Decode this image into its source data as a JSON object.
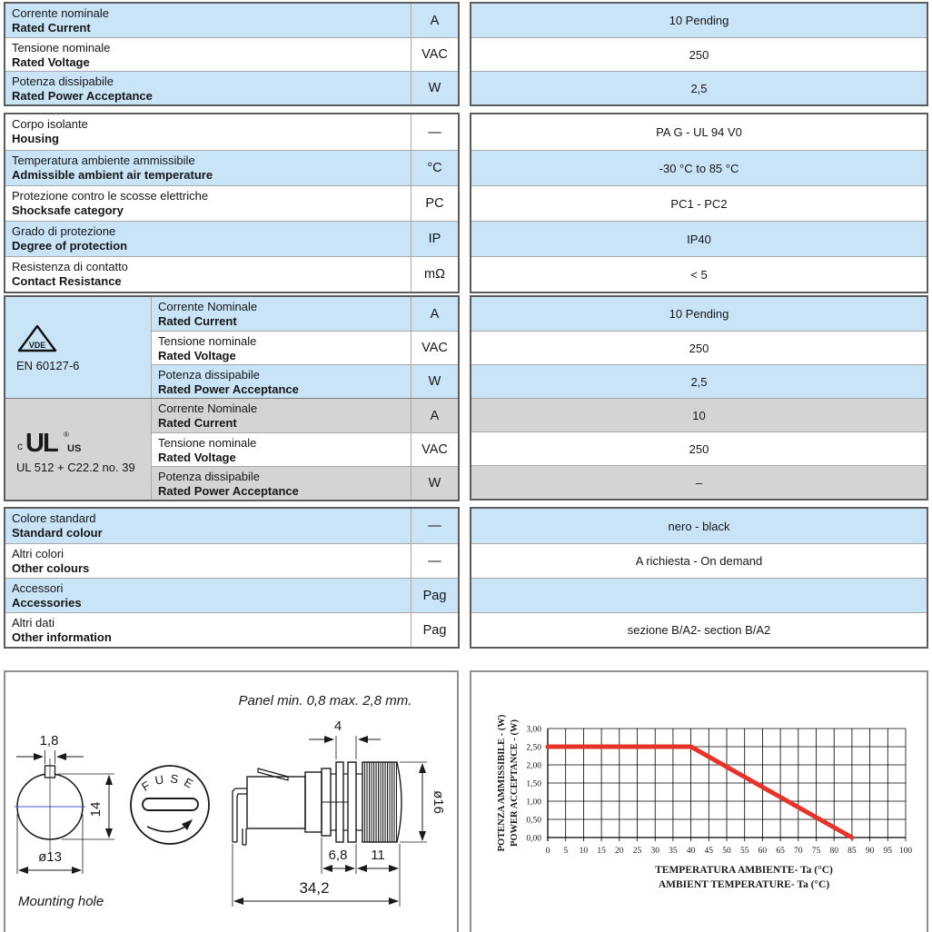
{
  "colors": {
    "light_blue": "#c8e4f6",
    "grey": "#d4d4d4",
    "border_dark": "#5c5c5c",
    "border_light": "#a8a8a8",
    "red_curve": "#e8332a",
    "centerline_blue": "#4456c8"
  },
  "ratings": {
    "rows": [
      {
        "it": "Corrente nominale",
        "en": "Rated Current",
        "unit": "A",
        "value": "10 Pending"
      },
      {
        "it": "Tensione nominale",
        "en": "Rated Voltage",
        "unit": "VAC",
        "value": "250"
      },
      {
        "it": "Potenza dissipabile",
        "en": "Rated Power Acceptance",
        "unit": "W",
        "value": "2,5"
      }
    ]
  },
  "general": {
    "rows": [
      {
        "it": "Corpo isolante",
        "en": "Housing",
        "unit": "—",
        "value": "PA G - UL 94 V0"
      },
      {
        "it": "Temperatura ambiente ammissibile",
        "en": "Admissible ambient air temperature",
        "unit": "°C",
        "value": "-30 °C to 85 °C"
      },
      {
        "it": "Protezione contro le scosse elettriche",
        "en": "Shocksafe category",
        "unit": "PC",
        "value": "PC1 - PC2"
      },
      {
        "it": "Grado di protezione",
        "en": "Degree of protection",
        "unit": "IP",
        "value": "IP40"
      },
      {
        "it": "Resistenza di contatto",
        "en": "Contact Resistance",
        "unit": "mΩ",
        "value": "< 5"
      }
    ]
  },
  "approvals": {
    "groups": [
      {
        "standard": "EN 60127-6",
        "logo": "vde-triangle-icon",
        "rows": [
          {
            "it": "Corrente Nominale",
            "en": "Rated Current",
            "unit": "A",
            "value": "10 Pending"
          },
          {
            "it": "Tensione nominale",
            "en": "Rated Voltage",
            "unit": "VAC",
            "value": "250"
          },
          {
            "it": "Potenza dissipabile",
            "en": "Rated Power Acceptance",
            "unit": "W",
            "value": "2,5"
          }
        ]
      },
      {
        "standard": "UL 512 + C22.2 no. 39",
        "logo": "ul-recognized-icon",
        "ul_parts": {
          "c": "c",
          "ul": "UL",
          "reg": "®",
          "us": "US"
        },
        "vde_text": "VDE",
        "rows": [
          {
            "it": "Corrente Nominale",
            "en": "Rated Current",
            "unit": "A",
            "value": "10"
          },
          {
            "it": "Tensione nominale",
            "en": "Rated Voltage",
            "unit": "VAC",
            "value": "250"
          },
          {
            "it": "Potenza dissipabile",
            "en": "Rated Power Acceptance",
            "unit": "W",
            "value": "–"
          }
        ]
      }
    ]
  },
  "other": {
    "rows": [
      {
        "it": "Colore standard",
        "en": "Standard colour",
        "unit": "—",
        "value": "nero - black"
      },
      {
        "it": "Altri colori",
        "en": "Other colours",
        "unit": "—",
        "value": "A richiesta - On demand"
      },
      {
        "it": "Accessori",
        "en": "Accessories",
        "unit": "Pag",
        "value": ""
      },
      {
        "it": "Altri dati",
        "en": "Other information",
        "unit": "Pag",
        "value": "sezione B/A2- section B/A2"
      }
    ]
  },
  "drawing": {
    "panel_note": "Panel min. 0,8  max. 2,8 mm.",
    "caption": "Mounting hole",
    "fuse_label": "FUSE",
    "dims": {
      "key": "1,8",
      "height": "14",
      "hole_dia": "ø13",
      "thread": "4",
      "cap_dia": "ø16",
      "len1": "6,8",
      "len2": "11",
      "total": "34,2"
    }
  },
  "chart_data": {
    "type": "line",
    "title": "",
    "xlabel_line1": "TEMPERATURA AMBIENTE- Ta (°C)",
    "xlabel_line2": "AMBIENT TEMPERATURE- Ta (°C)",
    "ylabel_line1": "POTENZA AMMISSIBILE - (W)",
    "ylabel_line2": "POWER ACCEPTANCE - (W)",
    "x_ticks": [
      0,
      5,
      10,
      15,
      20,
      25,
      30,
      35,
      40,
      45,
      50,
      55,
      60,
      65,
      70,
      75,
      80,
      85,
      90,
      95,
      100
    ],
    "y_ticks": [
      "3,00",
      "2,50",
      "2,00",
      "1,50",
      "1,00",
      "0,50",
      "0,00"
    ],
    "xlim": [
      0,
      100
    ],
    "ylim": [
      0,
      3
    ],
    "grid": true,
    "legend": "none",
    "series": [
      {
        "name": "power-acceptance-derating",
        "color": "#e8332a",
        "x": [
          0,
          40,
          85
        ],
        "y": [
          2.5,
          2.5,
          0
        ]
      }
    ]
  }
}
